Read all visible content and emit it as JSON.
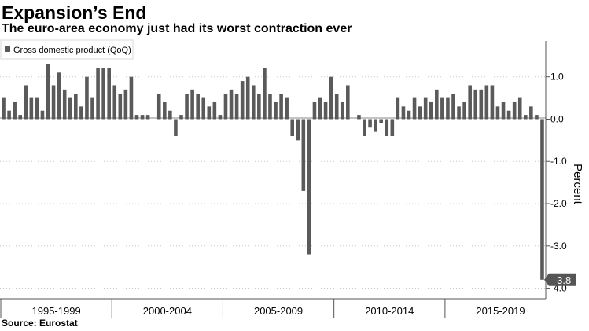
{
  "title": "Expansion’s End",
  "subtitle": "The euro-area economy just had its worst contraction ever",
  "source": "Source: Eurostat",
  "chart_data": {
    "type": "bar",
    "title": "",
    "xlabel": "",
    "ylabel": "Percent",
    "legend": "Gross domestic product (QoQ)",
    "legend_position": "top-left",
    "series": [
      {
        "name": "Gross domestic product (QoQ)",
        "color": "#5a5a5a",
        "values": [
          0.5,
          0.2,
          0.4,
          0.1,
          0.8,
          0.5,
          0.5,
          0.2,
          1.3,
          0.8,
          1.1,
          0.7,
          0.5,
          0.6,
          0.3,
          1.0,
          0.5,
          1.2,
          1.2,
          1.2,
          0.8,
          0.6,
          0.7,
          1.0,
          0.1,
          0.1,
          0.1,
          0.0,
          0.6,
          0.4,
          0.2,
          -0.4,
          0.1,
          0.6,
          0.7,
          0.6,
          0.5,
          0.3,
          0.4,
          0.1,
          0.6,
          0.7,
          0.6,
          0.9,
          1.0,
          0.8,
          0.6,
          1.2,
          0.6,
          0.4,
          0.6,
          0.5,
          -0.4,
          -0.5,
          -1.7,
          -3.2,
          0.4,
          0.5,
          0.4,
          1.0,
          0.6,
          0.4,
          0.8,
          0.0,
          0.1,
          -0.4,
          -0.2,
          -0.3,
          -0.1,
          -0.4,
          -0.4,
          0.5,
          0.3,
          0.2,
          0.5,
          0.3,
          0.5,
          0.4,
          0.7,
          0.5,
          0.5,
          0.6,
          0.3,
          0.4,
          0.8,
          0.7,
          0.7,
          0.8,
          0.8,
          0.3,
          0.4,
          0.2,
          0.4,
          0.5,
          0.1,
          0.3,
          0.1,
          -3.8
        ]
      }
    ],
    "period_labels": [
      "1995-1999",
      "2000-2004",
      "2005-2009",
      "2010-2014",
      "2015-2019"
    ],
    "y_ticks": [
      "1.0",
      "0.0",
      "-1.0",
      "-2.0",
      "-3.0",
      "-4.0"
    ],
    "y_tick_values": [
      1,
      0,
      -1,
      -2,
      -3,
      -4
    ],
    "ylim": [
      -4.25,
      1.85
    ],
    "last_value_label": "-3.8",
    "grid": "dotted horizontal"
  }
}
